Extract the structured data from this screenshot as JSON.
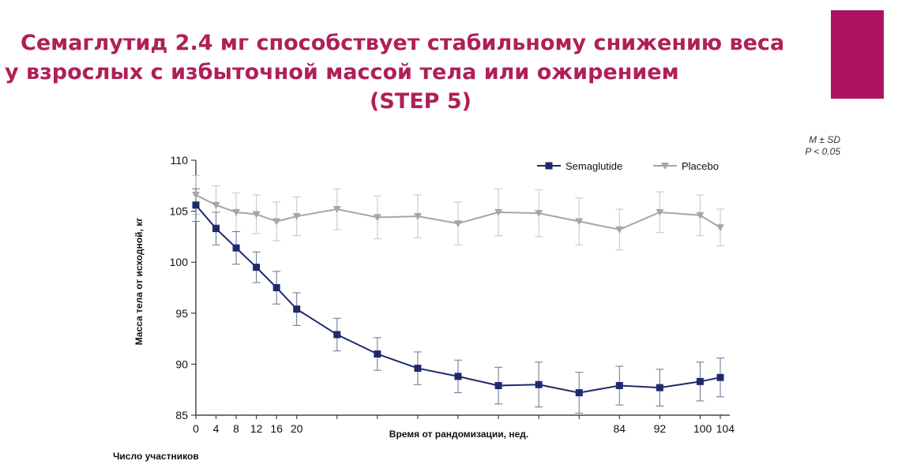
{
  "slide": {
    "title_line1": "Семаглутид 2.4 мг способствует стабильному снижению веса",
    "title_line2": "у взрослых с избыточной массой тела или ожирением",
    "title_line3": "(STEP 5)",
    "stat_mean": "M ± SD",
    "stat_p": "P < 0.05",
    "footer": "Число участников",
    "accent_color": "#ad1361",
    "title_color": "#b01f57"
  },
  "chart_data": {
    "type": "line",
    "xlabel": "Время от рандомизации, нед.",
    "ylabel": "Масса тела от исходной, кг",
    "ylim": [
      85,
      110
    ],
    "yticks": [
      85,
      90,
      95,
      100,
      105,
      110
    ],
    "x_tick_labels": [
      "0",
      "4",
      "8",
      "12",
      "16",
      "20",
      "84",
      "92",
      "100",
      "104"
    ],
    "legend_position": "top-right",
    "grid": false,
    "series": [
      {
        "name": "Semaglutide",
        "color": "#1f2a6e",
        "marker": "square",
        "x": [
          0,
          4,
          8,
          12,
          16,
          20,
          28,
          36,
          44,
          52,
          60,
          68,
          76,
          84,
          92,
          100,
          104
        ],
        "y": [
          105.6,
          103.3,
          101.4,
          99.5,
          97.5,
          95.4,
          92.9,
          91.0,
          89.6,
          88.8,
          87.9,
          88.0,
          87.2,
          87.9,
          87.7,
          88.3,
          88.7
        ],
        "sd": [
          1.6,
          1.6,
          1.6,
          1.5,
          1.6,
          1.6,
          1.6,
          1.6,
          1.6,
          1.6,
          1.8,
          2.2,
          2.0,
          1.9,
          1.8,
          1.9,
          1.9
        ]
      },
      {
        "name": "Placebo",
        "color": "#a6a6a6",
        "marker": "triangle-down",
        "x": [
          0,
          4,
          8,
          12,
          16,
          20,
          28,
          36,
          44,
          52,
          60,
          68,
          76,
          84,
          92,
          100,
          104
        ],
        "y": [
          106.6,
          105.6,
          104.9,
          104.7,
          104.0,
          104.5,
          105.2,
          104.4,
          104.5,
          103.8,
          104.9,
          104.8,
          104.0,
          103.2,
          104.9,
          104.6,
          103.4
        ],
        "sd": [
          1.9,
          1.9,
          1.9,
          1.9,
          1.9,
          1.9,
          2.0,
          2.1,
          2.1,
          2.1,
          2.3,
          2.3,
          2.3,
          2.0,
          2.0,
          2.0,
          1.8
        ]
      }
    ]
  }
}
